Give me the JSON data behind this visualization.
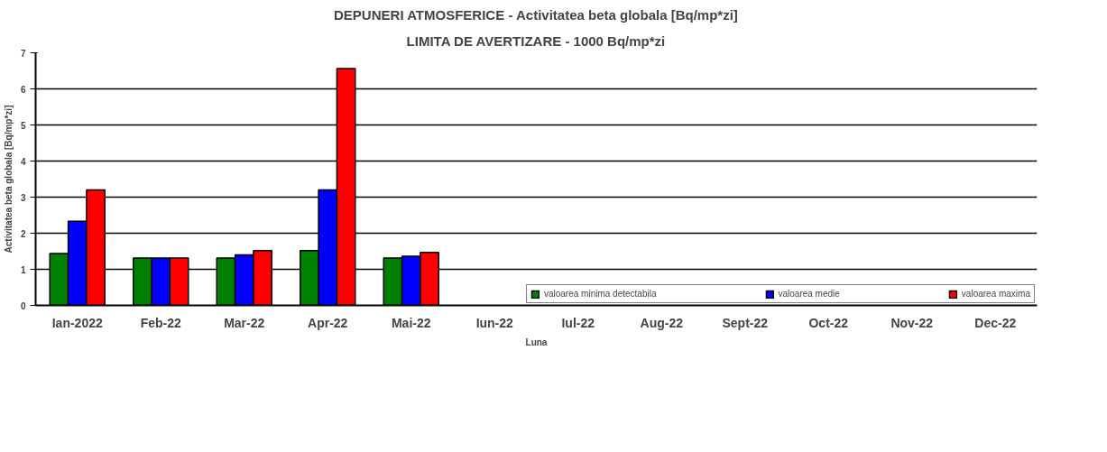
{
  "chart_data": {
    "type": "bar",
    "title": "DEPUNERI ATMOSFERICE - Activitatea beta globala [Bq/mp*zi]",
    "subtitle": "LIMITA DE AVERTIZARE - 1000 Bq/mp*zi",
    "xlabel": "Luna",
    "ylabel": "Activitatea beta globala [Bq/mp*zi]",
    "categories": [
      "Ian-2022",
      "Feb-22",
      "Mar-22",
      "Apr-22",
      "Mai-22",
      "Iun-22",
      "Iul-22",
      "Aug-22",
      "Sept-22",
      "Oct-22",
      "Nov-22",
      "Dec-22"
    ],
    "series": [
      {
        "name": "valoarea minima detectabila",
        "color": "#008000",
        "values": [
          1.44,
          1.31,
          1.31,
          1.52,
          1.31,
          null,
          null,
          null,
          null,
          null,
          null,
          null
        ]
      },
      {
        "name": "valoarea medie",
        "color": "#0000ff",
        "values": [
          2.33,
          1.31,
          1.4,
          3.2,
          1.36,
          null,
          null,
          null,
          null,
          null,
          null,
          null
        ]
      },
      {
        "name": "valoarea maxima",
        "color": "#ff0000",
        "values": [
          3.2,
          1.31,
          1.52,
          6.56,
          1.47,
          null,
          null,
          null,
          null,
          null,
          null,
          null
        ]
      }
    ],
    "ylim": [
      0,
      7
    ],
    "yticks": [
      0,
      1,
      2,
      3,
      4,
      5,
      6,
      7
    ],
    "grid": "y",
    "legend": "bottom right"
  }
}
